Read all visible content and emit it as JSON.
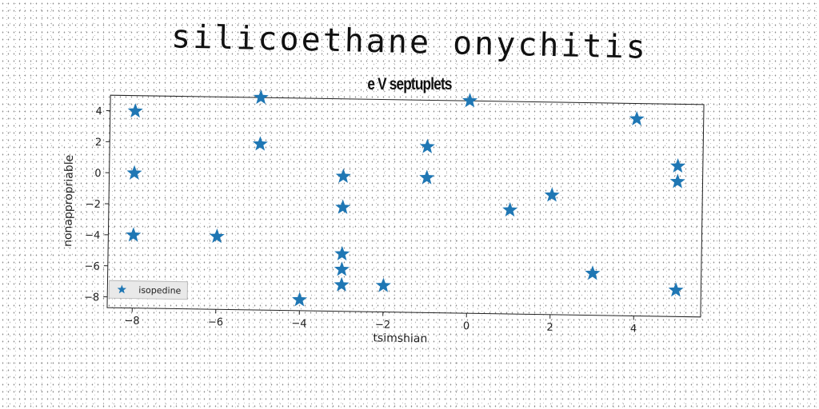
{
  "title": "silicoethane onychitis",
  "chart_data": {
    "type": "scatter",
    "subtitle": "e V septuplets",
    "xlabel": "tsimshian",
    "ylabel": "nonappropriable",
    "xlim": [
      -8.6,
      5.6
    ],
    "ylim": [
      -8.7,
      5.0
    ],
    "x_ticks": [
      "−8",
      "−6",
      "−4",
      "−2",
      "0",
      "2",
      "4"
    ],
    "x_tick_values": [
      -8,
      -6,
      -4,
      -2,
      0,
      2,
      4
    ],
    "y_ticks": [
      "−8",
      "−6",
      "−4",
      "−2",
      "0",
      "2",
      "4"
    ],
    "y_tick_values": [
      -8,
      -6,
      -4,
      -2,
      0,
      2,
      4
    ],
    "grid": false,
    "legend_position": "bottom-left",
    "series": [
      {
        "name": "isopedine",
        "color": "#1f77b4",
        "marker": "star",
        "points": [
          [
            -8,
            4
          ],
          [
            -8,
            0
          ],
          [
            -8,
            -4
          ],
          [
            -6,
            -4
          ],
          [
            -5,
            5
          ],
          [
            -5,
            2
          ],
          [
            -4,
            -8
          ],
          [
            -3,
            0
          ],
          [
            -3,
            -2
          ],
          [
            -3,
            -5
          ],
          [
            -3,
            -6
          ],
          [
            -3,
            -7
          ],
          [
            -2,
            -7
          ],
          [
            -1,
            2
          ],
          [
            -1,
            0
          ],
          [
            0,
            5
          ],
          [
            1,
            -2
          ],
          [
            2,
            -1
          ],
          [
            3,
            -6
          ],
          [
            4,
            4
          ],
          [
            5,
            1
          ],
          [
            5,
            0
          ],
          [
            5,
            -7
          ]
        ]
      }
    ]
  }
}
